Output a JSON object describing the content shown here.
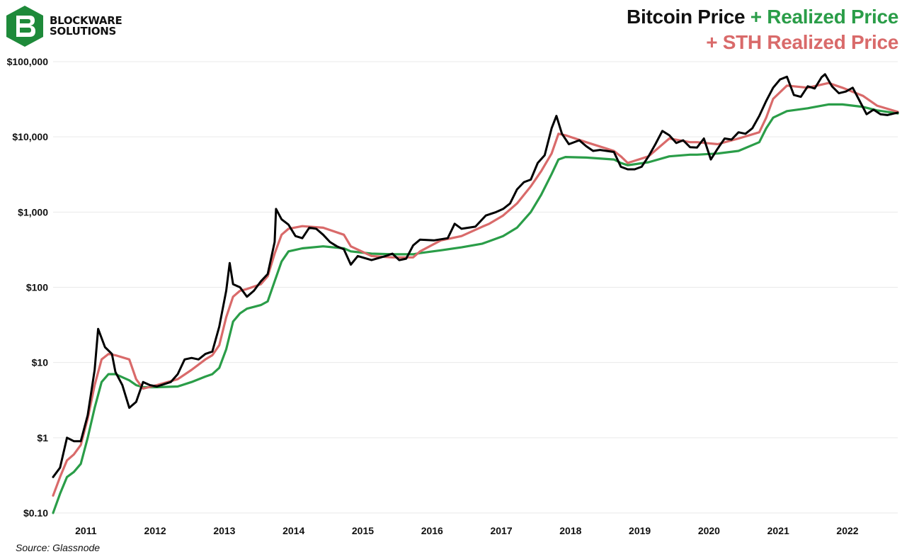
{
  "brand": {
    "line1": "BLOCKWARE",
    "line2": "SOLUTIONS",
    "logo_color": "#1e8a3a",
    "icon": "blockware-logo-icon"
  },
  "title": {
    "part1": "Bitcoin Price",
    "part2": "+ Realized Price",
    "part3": "+ STH Realized Price"
  },
  "source": "Source: Glassnode",
  "chart_data": {
    "type": "line",
    "y_scale": "log",
    "ylim": [
      0.1,
      100000
    ],
    "xlim": [
      2010.7,
      2022.9
    ],
    "y_ticks": [
      {
        "value": 0.1,
        "label": "$0.10"
      },
      {
        "value": 1,
        "label": "$1"
      },
      {
        "value": 10,
        "label": "$10"
      },
      {
        "value": 100,
        "label": "$100"
      },
      {
        "value": 1000,
        "label": "$1,000"
      },
      {
        "value": 10000,
        "label": "$10,000"
      },
      {
        "value": 100000,
        "label": "$100,000"
      }
    ],
    "x_ticks": [
      {
        "value": 2011.0,
        "label": "2011"
      },
      {
        "value": 2012.0,
        "label": "2012"
      },
      {
        "value": 2013.0,
        "label": "2013"
      },
      {
        "value": 2014.0,
        "label": "2014"
      },
      {
        "value": 2015.0,
        "label": "2015"
      },
      {
        "value": 2016.0,
        "label": "2016"
      },
      {
        "value": 2017.0,
        "label": "2017"
      },
      {
        "value": 2018.0,
        "label": "2018"
      },
      {
        "value": 2019.0,
        "label": "2019"
      },
      {
        "value": 2020.0,
        "label": "2020"
      },
      {
        "value": 2021.0,
        "label": "2021"
      },
      {
        "value": 2022.0,
        "label": "2022"
      }
    ],
    "grid": true,
    "series": [
      {
        "name": "Realized Price",
        "color": "#2a9d48",
        "points": [
          [
            2010.7,
            0.1
          ],
          [
            2010.8,
            0.18
          ],
          [
            2010.9,
            0.3
          ],
          [
            2011.0,
            0.35
          ],
          [
            2011.1,
            0.45
          ],
          [
            2011.2,
            1.0
          ],
          [
            2011.3,
            2.5
          ],
          [
            2011.4,
            5.5
          ],
          [
            2011.5,
            7.0
          ],
          [
            2011.6,
            7.0
          ],
          [
            2011.8,
            5.8
          ],
          [
            2011.9,
            5.0
          ],
          [
            2012.0,
            4.7
          ],
          [
            2012.2,
            4.7
          ],
          [
            2012.5,
            4.8
          ],
          [
            2012.7,
            5.5
          ],
          [
            2012.9,
            6.5
          ],
          [
            2013.0,
            7.0
          ],
          [
            2013.1,
            8.5
          ],
          [
            2013.2,
            15
          ],
          [
            2013.3,
            35
          ],
          [
            2013.4,
            45
          ],
          [
            2013.5,
            52
          ],
          [
            2013.7,
            58
          ],
          [
            2013.8,
            65
          ],
          [
            2013.9,
            120
          ],
          [
            2014.0,
            220
          ],
          [
            2014.1,
            300
          ],
          [
            2014.3,
            330
          ],
          [
            2014.6,
            350
          ],
          [
            2014.9,
            330
          ],
          [
            2015.0,
            300
          ],
          [
            2015.3,
            280
          ],
          [
            2015.6,
            275
          ],
          [
            2015.9,
            275
          ],
          [
            2016.0,
            285
          ],
          [
            2016.3,
            310
          ],
          [
            2016.6,
            340
          ],
          [
            2016.9,
            380
          ],
          [
            2017.0,
            410
          ],
          [
            2017.2,
            480
          ],
          [
            2017.4,
            620
          ],
          [
            2017.6,
            1000
          ],
          [
            2017.75,
            1700
          ],
          [
            2017.9,
            3200
          ],
          [
            2018.0,
            5000
          ],
          [
            2018.1,
            5400
          ],
          [
            2018.4,
            5300
          ],
          [
            2018.8,
            5000
          ],
          [
            2018.9,
            4500
          ],
          [
            2019.0,
            4200
          ],
          [
            2019.3,
            4600
          ],
          [
            2019.6,
            5500
          ],
          [
            2019.9,
            5800
          ],
          [
            2020.0,
            5800
          ],
          [
            2020.3,
            6000
          ],
          [
            2020.6,
            6500
          ],
          [
            2020.9,
            8500
          ],
          [
            2021.0,
            13000
          ],
          [
            2021.1,
            18000
          ],
          [
            2021.3,
            22000
          ],
          [
            2021.6,
            24000
          ],
          [
            2021.9,
            27000
          ],
          [
            2022.1,
            27000
          ],
          [
            2022.4,
            25000
          ],
          [
            2022.6,
            22500
          ],
          [
            2022.9,
            20500
          ]
        ]
      },
      {
        "name": "STH Realized Price",
        "color": "#d96a6a",
        "points": [
          [
            2010.7,
            0.17
          ],
          [
            2010.8,
            0.3
          ],
          [
            2010.9,
            0.5
          ],
          [
            2011.0,
            0.6
          ],
          [
            2011.1,
            0.8
          ],
          [
            2011.2,
            1.8
          ],
          [
            2011.3,
            5.0
          ],
          [
            2011.4,
            11.0
          ],
          [
            2011.5,
            13.0
          ],
          [
            2011.6,
            12.5
          ],
          [
            2011.8,
            11.0
          ],
          [
            2011.9,
            6.0
          ],
          [
            2012.0,
            4.5
          ],
          [
            2012.2,
            5.0
          ],
          [
            2012.5,
            6.0
          ],
          [
            2012.7,
            8.0
          ],
          [
            2012.9,
            11.0
          ],
          [
            2013.0,
            12.5
          ],
          [
            2013.1,
            17
          ],
          [
            2013.2,
            40
          ],
          [
            2013.3,
            75
          ],
          [
            2013.4,
            90
          ],
          [
            2013.5,
            95
          ],
          [
            2013.7,
            110
          ],
          [
            2013.8,
            140
          ],
          [
            2013.9,
            280
          ],
          [
            2014.0,
            500
          ],
          [
            2014.1,
            600
          ],
          [
            2014.3,
            650
          ],
          [
            2014.6,
            620
          ],
          [
            2014.9,
            500
          ],
          [
            2015.0,
            350
          ],
          [
            2015.3,
            260
          ],
          [
            2015.6,
            250
          ],
          [
            2015.9,
            250
          ],
          [
            2016.0,
            300
          ],
          [
            2016.3,
            420
          ],
          [
            2016.6,
            480
          ],
          [
            2016.9,
            640
          ],
          [
            2017.0,
            700
          ],
          [
            2017.2,
            900
          ],
          [
            2017.4,
            1300
          ],
          [
            2017.6,
            2200
          ],
          [
            2017.75,
            3500
          ],
          [
            2017.9,
            6000
          ],
          [
            2018.0,
            11000
          ],
          [
            2018.1,
            10500
          ],
          [
            2018.4,
            8500
          ],
          [
            2018.8,
            6500
          ],
          [
            2018.9,
            5500
          ],
          [
            2019.0,
            4500
          ],
          [
            2019.3,
            5500
          ],
          [
            2019.6,
            9500
          ],
          [
            2019.9,
            8500
          ],
          [
            2020.0,
            8500
          ],
          [
            2020.3,
            8000
          ],
          [
            2020.6,
            9500
          ],
          [
            2020.9,
            11500
          ],
          [
            2021.0,
            18000
          ],
          [
            2021.1,
            32000
          ],
          [
            2021.3,
            48000
          ],
          [
            2021.6,
            45000
          ],
          [
            2021.9,
            52000
          ],
          [
            2022.1,
            45000
          ],
          [
            2022.4,
            35000
          ],
          [
            2022.6,
            26000
          ],
          [
            2022.9,
            21500
          ]
        ]
      },
      {
        "name": "Bitcoin Price",
        "color": "#000000",
        "points": [
          [
            2010.7,
            0.3
          ],
          [
            2010.8,
            0.4
          ],
          [
            2010.9,
            1.0
          ],
          [
            2011.0,
            0.9
          ],
          [
            2011.1,
            0.9
          ],
          [
            2011.2,
            2.0
          ],
          [
            2011.3,
            8.0
          ],
          [
            2011.35,
            28
          ],
          [
            2011.45,
            16
          ],
          [
            2011.55,
            13
          ],
          [
            2011.6,
            7.5
          ],
          [
            2011.7,
            5.0
          ],
          [
            2011.8,
            2.5
          ],
          [
            2011.9,
            3.0
          ],
          [
            2012.0,
            5.5
          ],
          [
            2012.1,
            5.0
          ],
          [
            2012.2,
            4.8
          ],
          [
            2012.4,
            5.5
          ],
          [
            2012.5,
            7.0
          ],
          [
            2012.6,
            11.0
          ],
          [
            2012.7,
            11.5
          ],
          [
            2012.8,
            11.0
          ],
          [
            2012.9,
            13.0
          ],
          [
            2013.0,
            14.0
          ],
          [
            2013.1,
            30
          ],
          [
            2013.2,
            90
          ],
          [
            2013.25,
            210
          ],
          [
            2013.3,
            110
          ],
          [
            2013.4,
            100
          ],
          [
            2013.5,
            75
          ],
          [
            2013.6,
            90
          ],
          [
            2013.7,
            120
          ],
          [
            2013.8,
            150
          ],
          [
            2013.9,
            400
          ],
          [
            2013.92,
            1100
          ],
          [
            2014.0,
            800
          ],
          [
            2014.1,
            680
          ],
          [
            2014.2,
            480
          ],
          [
            2014.3,
            450
          ],
          [
            2014.4,
            620
          ],
          [
            2014.5,
            600
          ],
          [
            2014.6,
            500
          ],
          [
            2014.7,
            400
          ],
          [
            2014.8,
            350
          ],
          [
            2014.9,
            320
          ],
          [
            2015.0,
            200
          ],
          [
            2015.1,
            260
          ],
          [
            2015.3,
            230
          ],
          [
            2015.5,
            260
          ],
          [
            2015.6,
            280
          ],
          [
            2015.7,
            230
          ],
          [
            2015.8,
            240
          ],
          [
            2015.9,
            360
          ],
          [
            2016.0,
            430
          ],
          [
            2016.2,
            420
          ],
          [
            2016.4,
            450
          ],
          [
            2016.5,
            700
          ],
          [
            2016.6,
            600
          ],
          [
            2016.8,
            640
          ],
          [
            2016.95,
            900
          ],
          [
            2017.1,
            1000
          ],
          [
            2017.2,
            1100
          ],
          [
            2017.3,
            1300
          ],
          [
            2017.4,
            2000
          ],
          [
            2017.5,
            2500
          ],
          [
            2017.6,
            2700
          ],
          [
            2017.7,
            4500
          ],
          [
            2017.8,
            5700
          ],
          [
            2017.9,
            13000
          ],
          [
            2017.97,
            19000
          ],
          [
            2018.05,
            11000
          ],
          [
            2018.15,
            8000
          ],
          [
            2018.3,
            9000
          ],
          [
            2018.4,
            7500
          ],
          [
            2018.5,
            6500
          ],
          [
            2018.6,
            6700
          ],
          [
            2018.8,
            6300
          ],
          [
            2018.9,
            4000
          ],
          [
            2019.0,
            3700
          ],
          [
            2019.1,
            3700
          ],
          [
            2019.2,
            4000
          ],
          [
            2019.3,
            5500
          ],
          [
            2019.4,
            8000
          ],
          [
            2019.5,
            12000
          ],
          [
            2019.6,
            10500
          ],
          [
            2019.7,
            8300
          ],
          [
            2019.8,
            9000
          ],
          [
            2019.9,
            7300
          ],
          [
            2020.0,
            7200
          ],
          [
            2020.1,
            9500
          ],
          [
            2020.2,
            5000
          ],
          [
            2020.3,
            7000
          ],
          [
            2020.4,
            9500
          ],
          [
            2020.5,
            9200
          ],
          [
            2020.6,
            11500
          ],
          [
            2020.7,
            11000
          ],
          [
            2020.8,
            13000
          ],
          [
            2020.9,
            19000
          ],
          [
            2021.0,
            30000
          ],
          [
            2021.1,
            45000
          ],
          [
            2021.2,
            58000
          ],
          [
            2021.3,
            63000
          ],
          [
            2021.4,
            36000
          ],
          [
            2021.5,
            34000
          ],
          [
            2021.6,
            47000
          ],
          [
            2021.7,
            44000
          ],
          [
            2021.8,
            62000
          ],
          [
            2021.85,
            68000
          ],
          [
            2021.95,
            47000
          ],
          [
            2022.05,
            38000
          ],
          [
            2022.15,
            40000
          ],
          [
            2022.25,
            45000
          ],
          [
            2022.35,
            30000
          ],
          [
            2022.45,
            20000
          ],
          [
            2022.55,
            23000
          ],
          [
            2022.65,
            20000
          ],
          [
            2022.75,
            19500
          ],
          [
            2022.85,
            20500
          ],
          [
            2022.9,
            21000
          ]
        ]
      }
    ]
  }
}
